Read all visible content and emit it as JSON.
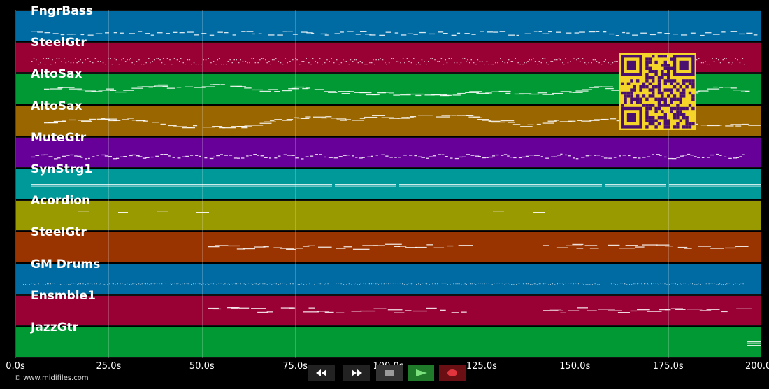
{
  "tracks": [
    {
      "name": "FngrBass",
      "color": "#006aa3",
      "pattern": "bass"
    },
    {
      "name": "SteelGtr",
      "color": "#990033",
      "pattern": "dense"
    },
    {
      "name": "AltoSax",
      "color": "#009933",
      "pattern": "melody"
    },
    {
      "name": "AltoSax",
      "color": "#996600",
      "pattern": "melody"
    },
    {
      "name": "MuteGtr",
      "color": "#660099",
      "pattern": "wave"
    },
    {
      "name": "SynStrg1",
      "color": "#009999",
      "pattern": "strings"
    },
    {
      "name": "Acordion",
      "color": "#999900",
      "pattern": "sparse"
    },
    {
      "name": "SteelGtr",
      "color": "#993300",
      "pattern": "sections"
    },
    {
      "name": "GM Drums",
      "color": "#006aa3",
      "pattern": "drums"
    },
    {
      "name": "Ensmble1",
      "color": "#990033",
      "pattern": "sections"
    },
    {
      "name": "JazzGtr",
      "color": "#009933",
      "pattern": "end"
    }
  ],
  "timeline": {
    "ticks": [
      "0.0s",
      "25.0s",
      "50.0s",
      "75.0s",
      "100.0s",
      "125.0s",
      "150.0s",
      "175.0s",
      "200.0s"
    ]
  },
  "copyright": "© www.midifiles.com",
  "transport": [
    {
      "name": "rewind-button",
      "icon": "rewind-icon",
      "bg": "#222222",
      "fg": "#ffffff"
    },
    {
      "name": "fast-forward-button",
      "icon": "fast-forward-icon",
      "bg": "#222222",
      "fg": "#ffffff"
    },
    {
      "name": "stop-button",
      "icon": "stop-icon",
      "bg": "#333333",
      "fg": "#9a9a9a"
    },
    {
      "name": "play-button",
      "icon": "play-icon",
      "bg": "#1f7a2a",
      "fg": "#7be07b"
    },
    {
      "name": "record-button",
      "icon": "record-icon",
      "bg": "#6a1015",
      "fg": "#e0353d"
    }
  ],
  "qr": {
    "fg": "#4a1070",
    "bg": "#f5d52a"
  }
}
